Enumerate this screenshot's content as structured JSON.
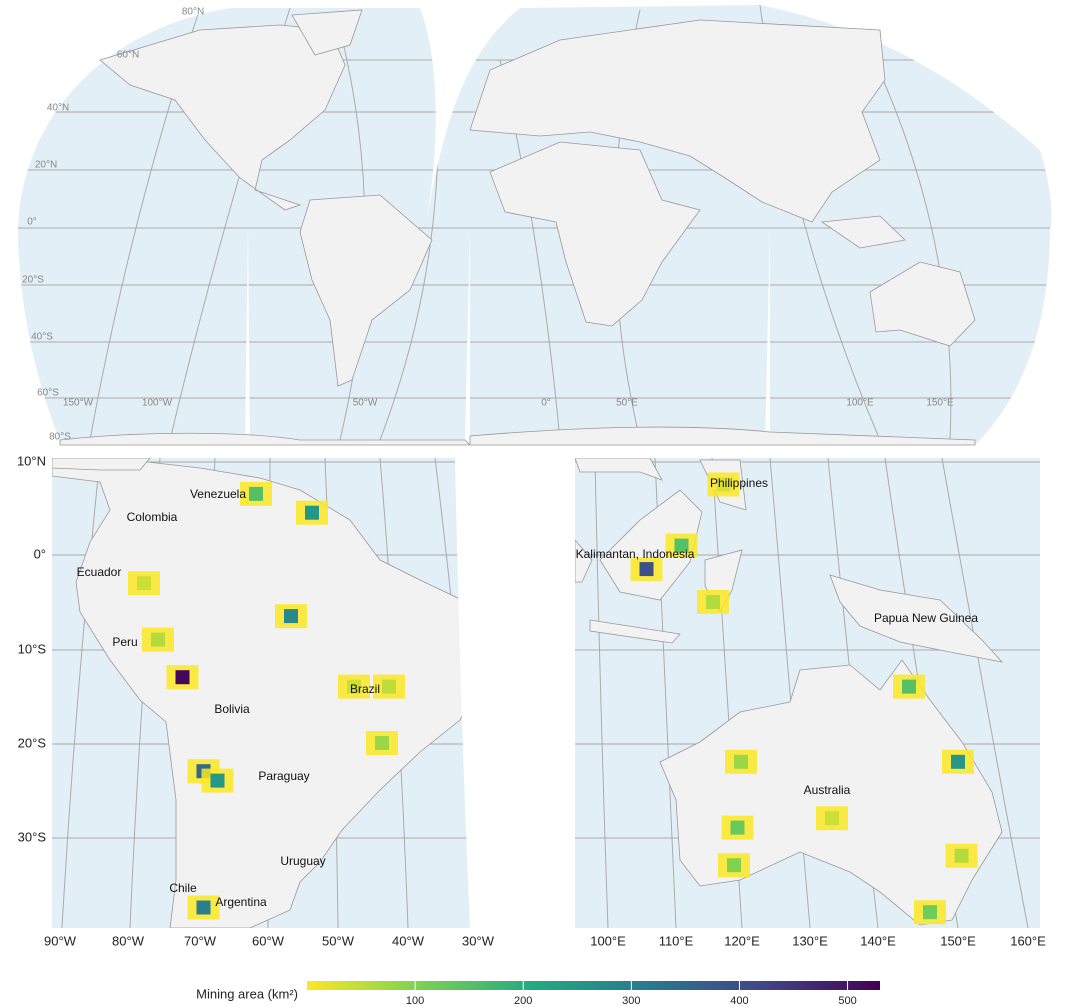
{
  "world_map": {
    "lat_labels": [
      "80°N",
      "60°N",
      "40°N",
      "20°N",
      "0°",
      "20°S",
      "40°S",
      "60°S",
      "80°S"
    ],
    "lon_labels": [
      "150°W",
      "100°W",
      "50°W",
      "0°",
      "50°E",
      "100°E",
      "150°E"
    ]
  },
  "inset_south_america": {
    "lat_labels": [
      "10°N",
      "0°",
      "10°S",
      "20°S",
      "30°S"
    ],
    "lon_labels": [
      "90°W",
      "80°W",
      "70°W",
      "60°W",
      "50°W",
      "40°W",
      "30°W"
    ],
    "place_labels": [
      "Venezuela",
      "Colombia",
      "Ecuador",
      "Peru",
      "Bolivia",
      "Brazil",
      "Paraguay",
      "Chile",
      "Argentina",
      "Uruguay"
    ],
    "cells": [
      {
        "lon": -62,
        "lat": 6.5,
        "area": 150
      },
      {
        "lon": -54,
        "lat": 4.5,
        "area": 250
      },
      {
        "lon": -57,
        "lat": -6.5,
        "area": 280
      },
      {
        "lon": -72.5,
        "lat": -13,
        "area": 520
      },
      {
        "lon": -69.5,
        "lat": -23,
        "area": 350
      },
      {
        "lon": -67.5,
        "lat": -24,
        "area": 250
      },
      {
        "lon": -69.5,
        "lat": -37.5,
        "area": 300
      },
      {
        "lon": -44,
        "lat": -20,
        "area": 80
      },
      {
        "lon": -48,
        "lat": -14,
        "area": 40
      },
      {
        "lon": -78,
        "lat": -3,
        "area": 40
      },
      {
        "lon": -76,
        "lat": -9,
        "area": 60
      },
      {
        "lon": -43,
        "lat": -14,
        "area": 50
      }
    ]
  },
  "inset_southeast_asia_australia": {
    "lon_labels": [
      "100°E",
      "110°E",
      "120°E",
      "130°E",
      "140°E",
      "150°E",
      "160°E"
    ],
    "place_labels": [
      "Philippines",
      "Kalimantan, Indonesia",
      "Papua New Guinea",
      "Australia"
    ],
    "cells": [
      {
        "lon": 105.5,
        "lat": -1.5,
        "area": 400
      },
      {
        "lon": 110.5,
        "lat": 1,
        "area": 150
      },
      {
        "lon": 116.5,
        "lat": 7.5,
        "area": 30
      },
      {
        "lon": 115,
        "lat": -5,
        "area": 60
      },
      {
        "lon": 150,
        "lat": -22,
        "area": 250
      },
      {
        "lon": 146,
        "lat": -38,
        "area": 120
      },
      {
        "lon": 118,
        "lat": -33,
        "area": 100
      },
      {
        "lon": 119,
        "lat": -22,
        "area": 80
      },
      {
        "lon": 143,
        "lat": -14,
        "area": 150
      },
      {
        "lon": 118.5,
        "lat": -29,
        "area": 130
      },
      {
        "lon": 132,
        "lat": -28,
        "area": 40
      },
      {
        "lon": 150.5,
        "lat": -32,
        "area": 60
      }
    ]
  },
  "legend": {
    "title": "Mining area (km²)",
    "lim": [
      0,
      530
    ],
    "ticks": [
      100,
      200,
      300,
      400,
      500
    ]
  }
}
